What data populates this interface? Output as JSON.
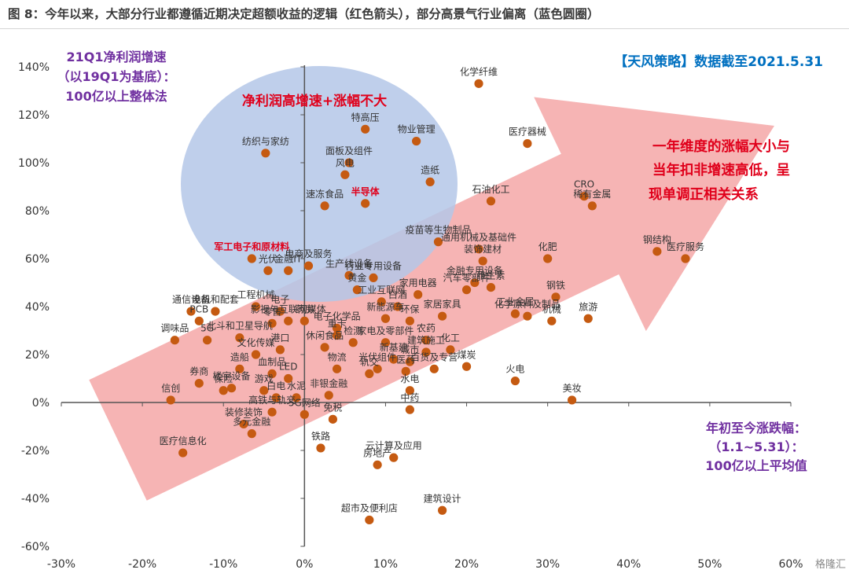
{
  "figure_title": "图 8：今年以来，大部分行业都遵循近期决定超额收益的逻辑（红色箭头），部分高景气行业偏离（蓝色圆圈）",
  "colors": {
    "point": "#c55a11",
    "arrow": "#f4a3a3",
    "circle": "#b4c7e7",
    "purple": "#7030a0",
    "blue": "#0070c0",
    "red": "#e0001b"
  },
  "annotations": {
    "ylabel_lines": [
      "21Q1净利润增速",
      "（以19Q1为基底）：",
      "100亿以上整体法"
    ],
    "xlabel_lines": [
      "年初至今涨跌幅：",
      "（1.1~5.31）：",
      "100亿以上平均值"
    ],
    "source": "【天风策略】数据截至2021.5.31",
    "circle_note": "净利润高增速+涨幅不大",
    "arrow_note_lines": [
      "一年维度的涨幅大小与",
      "当年扣非增速高低，呈",
      "现单调正相关关系"
    ],
    "watermark": "格隆汇"
  },
  "chart_data": {
    "type": "scatter",
    "xlim": [
      -30,
      60
    ],
    "ylim": [
      -60,
      140
    ],
    "x_ticks": [
      "-30%",
      "-20%",
      "-10%",
      "0%",
      "10%",
      "20%",
      "30%",
      "40%",
      "50%",
      "60%"
    ],
    "y_ticks": [
      "-60%",
      "-40%",
      "-20%",
      "0%",
      "20%",
      "40%",
      "60%",
      "80%",
      "100%",
      "120%",
      "140%"
    ],
    "points": [
      {
        "label": "化学纤维",
        "x": 21.5,
        "y": 133
      },
      {
        "label": "特高压",
        "x": 7.5,
        "y": 114
      },
      {
        "label": "物业管理",
        "x": 13.8,
        "y": 109
      },
      {
        "label": "纺织与家纺",
        "x": -4.8,
        "y": 104
      },
      {
        "label": "面板及组件",
        "x": 5.5,
        "y": 100
      },
      {
        "label": "风电",
        "x": 5,
        "y": 95
      },
      {
        "label": "造纸",
        "x": 15.5,
        "y": 92
      },
      {
        "label": "速冻食品",
        "x": 2.5,
        "y": 82
      },
      {
        "label": "半导体",
        "x": 7.5,
        "y": 83
      },
      {
        "label": "医疗器械",
        "x": 27.5,
        "y": 108
      },
      {
        "label": "CRO",
        "x": 34.5,
        "y": 86
      },
      {
        "label": "稀有金属",
        "x": 35.5,
        "y": 82
      },
      {
        "label": "石油化工",
        "x": 23,
        "y": 84
      },
      {
        "label": "疫苗等生物制品",
        "x": 16.5,
        "y": 67
      },
      {
        "label": "通用机械及基础件",
        "x": 21.5,
        "y": 64
      },
      {
        "label": "装饰建材",
        "x": 22,
        "y": 59
      },
      {
        "label": "化肥",
        "x": 30,
        "y": 60
      },
      {
        "label": "钢结构",
        "x": 43.5,
        "y": 63
      },
      {
        "label": "医疗服务",
        "x": 47,
        "y": 60
      },
      {
        "label": "钢铁",
        "x": 31,
        "y": 44
      },
      {
        "label": "军工电子和原材料",
        "x": -6.5,
        "y": 60
      },
      {
        "label": "光伏",
        "x": -4.5,
        "y": 55
      },
      {
        "label": "金融IT",
        "x": -2,
        "y": 55
      },
      {
        "label": "生产线设备",
        "x": 5.5,
        "y": 53
      },
      {
        "label": "电商及服务",
        "x": 0.5,
        "y": 57
      },
      {
        "label": "行业专用设备",
        "x": 8.5,
        "y": 52
      },
      {
        "label": "汽车零部件",
        "x": 20,
        "y": 47
      },
      {
        "label": "金融专用设备",
        "x": 21,
        "y": 50
      },
      {
        "label": "维生素",
        "x": 23,
        "y": 48
      },
      {
        "label": "黄金",
        "x": 6.5,
        "y": 47
      },
      {
        "label": "家用电器",
        "x": 14,
        "y": 45
      },
      {
        "label": "家居家具",
        "x": 17,
        "y": 36
      },
      {
        "label": "工业金属",
        "x": 26,
        "y": 37
      },
      {
        "label": "化学原料及制品",
        "x": 27.5,
        "y": 36
      },
      {
        "label": "机械",
        "x": 30.5,
        "y": 34
      },
      {
        "label": "旅游",
        "x": 35,
        "y": 35
      },
      {
        "label": "工业互联网",
        "x": 9.5,
        "y": 42
      },
      {
        "label": "白酒",
        "x": 11.5,
        "y": 40
      },
      {
        "label": "新能源车",
        "x": 10,
        "y": 35
      },
      {
        "label": "环保",
        "x": 13,
        "y": 34
      },
      {
        "label": "通信设备",
        "x": -14,
        "y": 38
      },
      {
        "label": "电机和配套",
        "x": -11,
        "y": 38
      },
      {
        "label": "工程机械",
        "x": -6,
        "y": 40
      },
      {
        "label": "电子",
        "x": -3,
        "y": 38
      },
      {
        "label": "零售",
        "x": -4,
        "y": 33
      },
      {
        "label": "PCB",
        "x": -13,
        "y": 34
      },
      {
        "label": "影视与互联网媒体",
        "x": -2,
        "y": 34
      },
      {
        "label": "药房",
        "x": 0,
        "y": 34
      },
      {
        "label": "电子化学品",
        "x": 4,
        "y": 31
      },
      {
        "label": "北斗和卫星导航",
        "x": -8,
        "y": 27
      },
      {
        "label": "5G",
        "x": -12,
        "y": 26
      },
      {
        "label": "调味品",
        "x": -16,
        "y": 26
      },
      {
        "label": "重卡",
        "x": 4,
        "y": 28
      },
      {
        "label": "检测",
        "x": 6,
        "y": 25
      },
      {
        "label": "农药",
        "x": 15,
        "y": 26
      },
      {
        "label": "休闲食品",
        "x": 2.5,
        "y": 23
      },
      {
        "label": "港口",
        "x": -3,
        "y": 22
      },
      {
        "label": "文化传媒",
        "x": -6,
        "y": 20
      },
      {
        "label": "家电及零部件",
        "x": 10,
        "y": 25
      },
      {
        "label": "建筑施工",
        "x": 15,
        "y": 21
      },
      {
        "label": "化工",
        "x": 18,
        "y": 22
      },
      {
        "label": "新基建",
        "x": 11,
        "y": 18
      },
      {
        "label": "城市",
        "x": 13,
        "y": 17
      },
      {
        "label": "煤炭",
        "x": 20,
        "y": 15
      },
      {
        "label": "火电",
        "x": 26,
        "y": 9
      },
      {
        "label": "美妆",
        "x": 33,
        "y": 1
      },
      {
        "label": "百货及专营",
        "x": 16,
        "y": 14
      },
      {
        "label": "医药",
        "x": 12.5,
        "y": 13
      },
      {
        "label": "光伏组件",
        "x": 9,
        "y": 14
      },
      {
        "label": "物流",
        "x": 4,
        "y": 14
      },
      {
        "label": "轨交",
        "x": 8,
        "y": 12
      },
      {
        "label": "券商",
        "x": -13,
        "y": 8
      },
      {
        "label": "保险",
        "x": -10,
        "y": 5
      },
      {
        "label": "楼宇设备",
        "x": -9,
        "y": 6
      },
      {
        "label": "血制品",
        "x": -4,
        "y": 12
      },
      {
        "label": "造船",
        "x": -8,
        "y": 14
      },
      {
        "label": "LED",
        "x": -2,
        "y": 10
      },
      {
        "label": "信创",
        "x": -16.5,
        "y": 1
      },
      {
        "label": "医疗信息化",
        "x": -15,
        "y": -21
      },
      {
        "label": "游戏",
        "x": -5,
        "y": 5
      },
      {
        "label": "白电",
        "x": -3.5,
        "y": 2
      },
      {
        "label": "水泥",
        "x": -1,
        "y": 2
      },
      {
        "label": "非银金融",
        "x": 3,
        "y": 3
      },
      {
        "label": "水电",
        "x": 13,
        "y": 5
      },
      {
        "label": "中药",
        "x": 13,
        "y": -3
      },
      {
        "label": "高铁与轨交",
        "x": -4,
        "y": -4
      },
      {
        "label": "5G网络",
        "x": 0,
        "y": -5
      },
      {
        "label": "装修装饰",
        "x": -7.5,
        "y": -9
      },
      {
        "label": "多元金融",
        "x": -6.5,
        "y": -13
      },
      {
        "label": "免税",
        "x": 3.5,
        "y": -7
      },
      {
        "label": "铁路",
        "x": 2,
        "y": -19
      },
      {
        "label": "云计算及应用",
        "x": 11,
        "y": -23
      },
      {
        "label": "房地产",
        "x": 9,
        "y": -26
      },
      {
        "label": "建筑设计",
        "x": 17,
        "y": -45
      },
      {
        "label": "超市及便利店",
        "x": 8,
        "y": -49
      }
    ]
  }
}
